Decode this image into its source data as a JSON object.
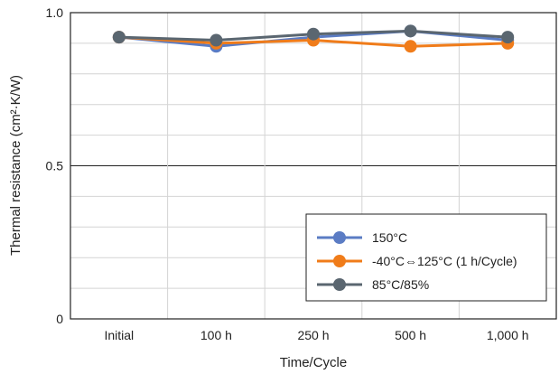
{
  "chart_data": {
    "type": "line",
    "categories": [
      "Initial",
      "100 h",
      "250 h",
      "500 h",
      "1,000 h"
    ],
    "series": [
      {
        "name": "150°C",
        "color": "#5B7CC4",
        "values": [
          0.92,
          0.89,
          0.92,
          0.94,
          0.91
        ]
      },
      {
        "name": "-40°C⇔125°C (1 h/Cycle)",
        "color": "#F07C1A",
        "values": [
          0.92,
          0.9,
          0.91,
          0.89,
          0.9
        ]
      },
      {
        "name": "85°C/85%",
        "color": "#5A6670",
        "values": [
          0.92,
          0.91,
          0.93,
          0.94,
          0.92
        ]
      }
    ],
    "xlabel": "Time/Cycle",
    "ylabel": "Thermal resistance (cm²·K/W)",
    "ylim": [
      0,
      1.0
    ],
    "yticks": [
      {
        "value": 0,
        "label": "0"
      },
      {
        "value": 0.5,
        "label": "0.5"
      },
      {
        "value": 1.0,
        "label": "1.0"
      }
    ],
    "minor_gridlines_y": [
      0.1,
      0.2,
      0.3,
      0.4,
      0.6,
      0.7,
      0.8,
      0.9
    ],
    "grid": true,
    "legend_position": "bottom-right"
  }
}
